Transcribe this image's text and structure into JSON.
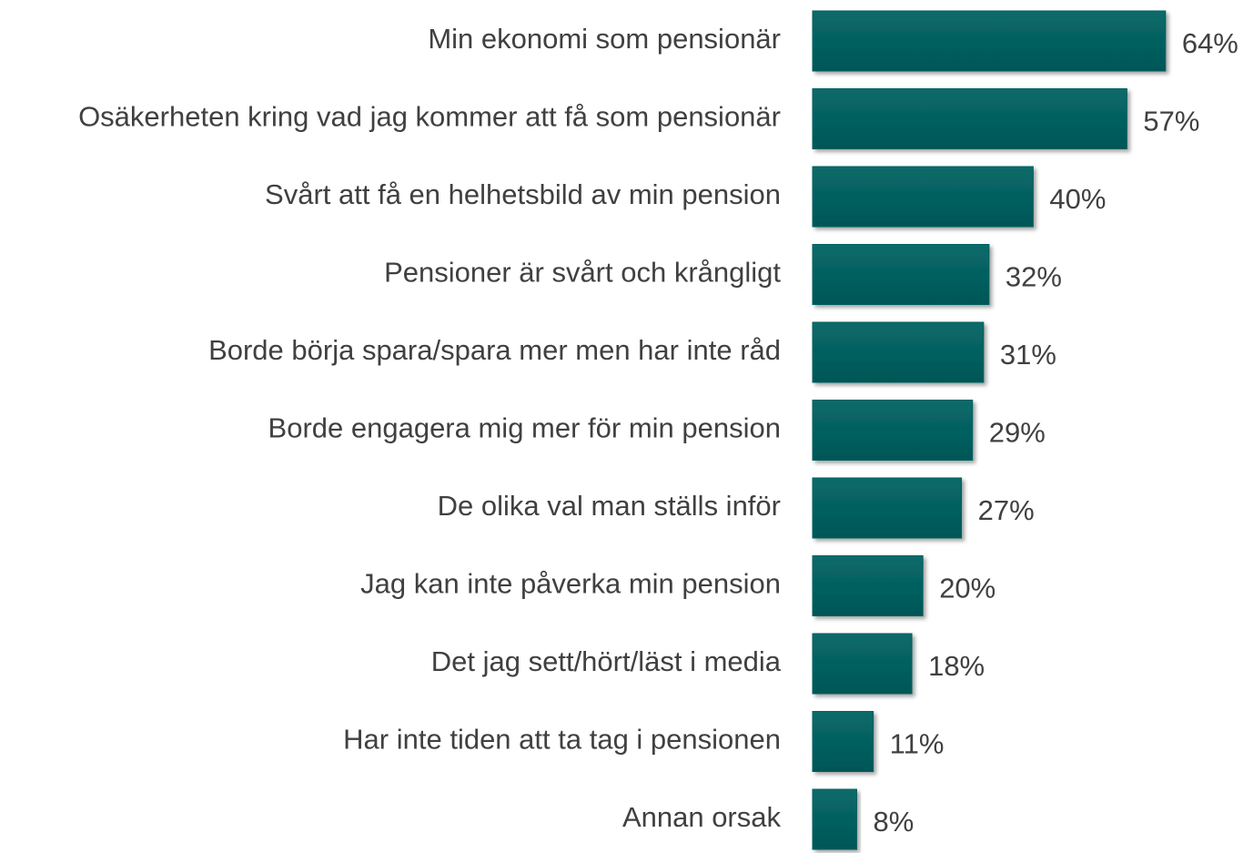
{
  "chart_data": {
    "type": "bar",
    "orientation": "horizontal",
    "categories": [
      "Min ekonomi som pensionär",
      "Osäkerheten kring vad jag kommer att få som pensionär",
      "Svårt att få en helhetsbild av min pension",
      "Pensioner är svårt och krångligt",
      "Borde börja spara/spara mer men har inte råd",
      "Borde engagera mig mer för min pension",
      "De olika val man ställs inför",
      "Jag kan inte påverka min pension",
      "Det jag sett/hört/läst i media",
      "Har inte tiden att ta tag i pensionen",
      "Annan orsak"
    ],
    "values": [
      64,
      57,
      40,
      32,
      31,
      29,
      27,
      20,
      18,
      11,
      8
    ],
    "value_labels": [
      "64%",
      "57%",
      "40%",
      "32%",
      "31%",
      "29%",
      "27%",
      "20%",
      "18%",
      "11%",
      "8%"
    ],
    "color": "#006060"
  }
}
